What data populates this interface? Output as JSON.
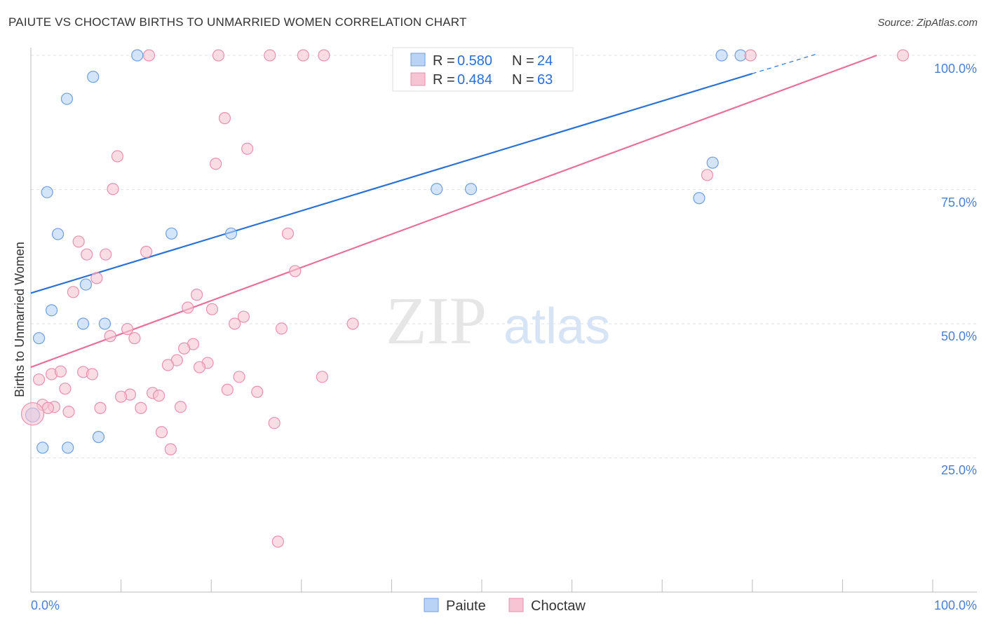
{
  "chart_data": {
    "type": "scatter",
    "title": "PAIUTE VS CHOCTAW BIRTHS TO UNMARRIED WOMEN CORRELATION CHART",
    "source": "Source: ZipAtlas.com",
    "xlabel": "",
    "ylabel": "Births to Unmarried Women",
    "xlim": [
      0,
      100
    ],
    "ylim": [
      0,
      100
    ],
    "x_tick_labels": [
      "0.0%",
      "100.0%"
    ],
    "y_ticks": [
      25,
      50,
      75,
      100
    ],
    "y_tick_labels": [
      "25.0%",
      "50.0%",
      "75.0%",
      "100.0%"
    ],
    "grid": true,
    "legend_placement": "top-center",
    "watermark": "ZIPatlas",
    "series": [
      {
        "name": "Paiute",
        "color": "#6f9fdf",
        "fill": "#b8d3f5",
        "line_color": "#2a72d5",
        "r_label": "R = ",
        "r": "0.580",
        "n_label": "N = ",
        "n": "24",
        "trend": {
          "x0": 0,
          "y0": 55.7,
          "x1": 80,
          "y1": 96.6,
          "dash_to_x": 87
        },
        "points": [
          [
            0.2,
            33.0
          ],
          [
            0.9,
            47.3
          ],
          [
            1.3,
            26.9
          ],
          [
            1.8,
            74.5
          ],
          [
            2.3,
            52.5
          ],
          [
            3.0,
            66.7
          ],
          [
            4.0,
            91.9
          ],
          [
            4.1,
            26.9
          ],
          [
            5.8,
            50.0
          ],
          [
            6.1,
            57.3
          ],
          [
            6.9,
            96.0
          ],
          [
            7.5,
            28.9
          ],
          [
            8.2,
            50.0
          ],
          [
            11.8,
            100
          ],
          [
            15.6,
            66.8
          ],
          [
            22.2,
            66.8
          ],
          [
            45.0,
            75.1
          ],
          [
            45.6,
            100
          ],
          [
            45.9,
            100
          ],
          [
            48.8,
            75.1
          ],
          [
            74.1,
            73.4
          ],
          [
            75.6,
            80.0
          ],
          [
            76.6,
            100
          ],
          [
            78.7,
            100
          ]
        ]
      },
      {
        "name": "Choctaw",
        "color": "#e890ae",
        "fill": "#f7c4d3",
        "line_color": "#e8709a",
        "r_label": "R = ",
        "r": "0.484",
        "n_label": "N = ",
        "n": "63",
        "trend": {
          "x0": 0,
          "y0": 41.9,
          "x1": 93.8,
          "y1": 100
        },
        "points": [
          [
            13.1,
            100
          ],
          [
            20.8,
            100
          ],
          [
            26.5,
            100
          ],
          [
            30.2,
            100
          ],
          [
            32.5,
            100
          ],
          [
            79.8,
            100
          ],
          [
            96.7,
            100
          ],
          [
            21.5,
            88.3
          ],
          [
            24.0,
            82.6
          ],
          [
            9.6,
            81.2
          ],
          [
            20.5,
            79.8
          ],
          [
            9.1,
            75.1
          ],
          [
            75.0,
            77.7
          ],
          [
            28.5,
            66.8
          ],
          [
            5.3,
            65.3
          ],
          [
            6.2,
            62.9
          ],
          [
            8.3,
            62.9
          ],
          [
            12.8,
            63.4
          ],
          [
            7.3,
            58.5
          ],
          [
            29.3,
            59.8
          ],
          [
            4.7,
            55.9
          ],
          [
            18.4,
            55.4
          ],
          [
            17.4,
            53.0
          ],
          [
            20.1,
            52.7
          ],
          [
            23.6,
            51.3
          ],
          [
            22.6,
            50.0
          ],
          [
            35.7,
            50.0
          ],
          [
            10.7,
            49.0
          ],
          [
            27.8,
            49.1
          ],
          [
            8.8,
            47.7
          ],
          [
            11.5,
            47.3
          ],
          [
            18.0,
            46.2
          ],
          [
            17.0,
            45.4
          ],
          [
            16.2,
            43.2
          ],
          [
            19.6,
            42.7
          ],
          [
            15.2,
            42.3
          ],
          [
            18.7,
            41.9
          ],
          [
            32.3,
            40.1
          ],
          [
            23.1,
            40.1
          ],
          [
            0.9,
            39.6
          ],
          [
            2.3,
            40.6
          ],
          [
            3.3,
            41.1
          ],
          [
            5.8,
            41.0
          ],
          [
            6.8,
            40.6
          ],
          [
            3.8,
            37.9
          ],
          [
            21.8,
            37.7
          ],
          [
            25.1,
            37.3
          ],
          [
            13.5,
            37.1
          ],
          [
            11.0,
            36.8
          ],
          [
            10.0,
            36.4
          ],
          [
            14.2,
            36.6
          ],
          [
            1.3,
            34.9
          ],
          [
            2.6,
            34.5
          ],
          [
            1.9,
            34.3
          ],
          [
            7.7,
            34.3
          ],
          [
            12.2,
            34.3
          ],
          [
            16.6,
            34.5
          ],
          [
            4.2,
            33.6
          ],
          [
            0.2,
            33.2
          ],
          [
            14.5,
            29.8
          ],
          [
            27.0,
            31.5
          ],
          [
            15.5,
            26.6
          ],
          [
            27.4,
            9.4
          ]
        ]
      }
    ]
  }
}
